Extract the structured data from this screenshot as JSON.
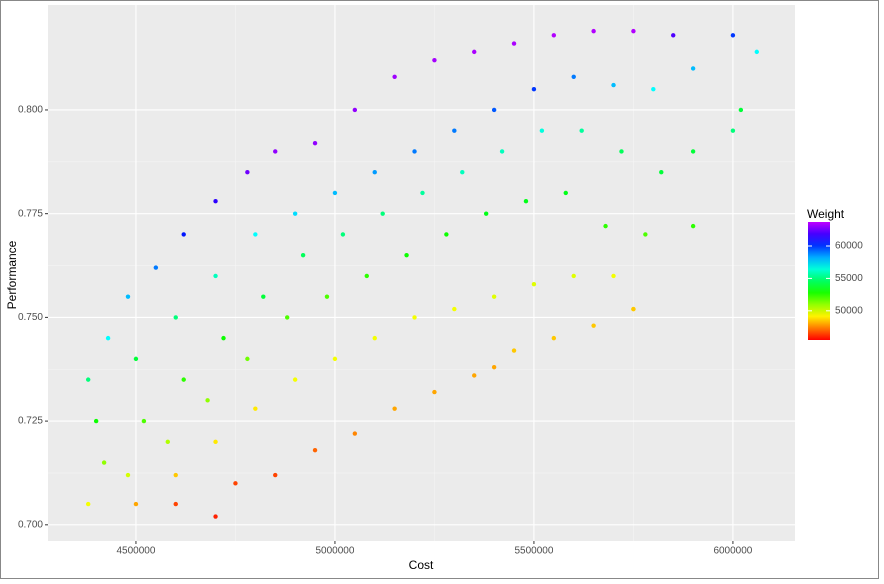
{
  "chart_data": {
    "type": "scatter",
    "x_label": "Cost",
    "y_label": "Performance",
    "color_label": "Weight",
    "xlim": [
      4279000,
      6156000
    ],
    "ylim": [
      0.6961,
      0.8253
    ],
    "xticks": [
      4500000,
      5000000,
      5500000,
      6000000
    ],
    "yticks": [
      {
        "value": 0.7,
        "label": "0.700"
      },
      {
        "value": 0.725,
        "label": "0.725"
      },
      {
        "value": 0.75,
        "label": "0.750"
      },
      {
        "value": 0.775,
        "label": "0.775"
      },
      {
        "value": 0.8,
        "label": "0.800"
      }
    ],
    "color_lim": [
      45500,
      63700
    ],
    "color_ticks": [
      50000,
      55000,
      60000
    ],
    "grid": true,
    "x": [
      4380000,
      4430000,
      4480000,
      4550000,
      4620000,
      4700000,
      4780000,
      4850000,
      4950000,
      5050000,
      5150000,
      5250000,
      5350000,
      5450000,
      5550000,
      5650000,
      5750000,
      5850000,
      6000000,
      6060000,
      4400000,
      4500000,
      4600000,
      4700000,
      4800000,
      4900000,
      5000000,
      5100000,
      5200000,
      5300000,
      5400000,
      5500000,
      5600000,
      5700000,
      5800000,
      5900000,
      6020000,
      4420000,
      4520000,
      4620000,
      4720000,
      4820000,
      4920000,
      5020000,
      5120000,
      5220000,
      5320000,
      5420000,
      5520000,
      5620000,
      5720000,
      5820000,
      5900000,
      6000000,
      4380000,
      4480000,
      4580000,
      4680000,
      4780000,
      4880000,
      4980000,
      5080000,
      5180000,
      5280000,
      5380000,
      5480000,
      5580000,
      5680000,
      5780000,
      5900000,
      4500000,
      4600000,
      4700000,
      4800000,
      4900000,
      5000000,
      5100000,
      5200000,
      5300000,
      5400000,
      5500000,
      5600000,
      5700000,
      5750000,
      4600000,
      4700000,
      4750000,
      4850000,
      4950000,
      5050000,
      5150000,
      5250000,
      5350000,
      5400000,
      5450000,
      5550000,
      5650000,
      5750000
    ],
    "values": [
      0.735,
      0.745,
      0.755,
      0.762,
      0.77,
      0.778,
      0.785,
      0.79,
      0.792,
      0.8,
      0.808,
      0.812,
      0.814,
      0.816,
      0.818,
      0.819,
      0.819,
      0.818,
      0.818,
      0.814,
      0.725,
      0.74,
      0.75,
      0.76,
      0.77,
      0.775,
      0.78,
      0.785,
      0.79,
      0.795,
      0.8,
      0.805,
      0.808,
      0.806,
      0.805,
      0.81,
      0.8,
      0.715,
      0.725,
      0.735,
      0.745,
      0.755,
      0.765,
      0.77,
      0.775,
      0.78,
      0.785,
      0.79,
      0.795,
      0.795,
      0.79,
      0.785,
      0.79,
      0.795,
      0.705,
      0.712,
      0.72,
      0.73,
      0.74,
      0.75,
      0.755,
      0.76,
      0.765,
      0.77,
      0.775,
      0.778,
      0.78,
      0.772,
      0.77,
      0.772,
      0.705,
      0.712,
      0.72,
      0.728,
      0.735,
      0.74,
      0.745,
      0.75,
      0.752,
      0.755,
      0.758,
      0.76,
      0.76,
      0.752,
      0.705,
      0.702,
      0.71,
      0.712,
      0.718,
      0.722,
      0.728,
      0.732,
      0.736,
      0.738,
      0.742,
      0.745,
      0.748,
      0.752
    ],
    "weights": [
      55000,
      57000,
      58000,
      59000,
      60500,
      61500,
      62500,
      63000,
      63000,
      63000,
      63200,
      63300,
      63400,
      63400,
      63500,
      63500,
      63500,
      62000,
      60000,
      57000,
      53000,
      54000,
      55000,
      56000,
      57000,
      57500,
      58000,
      58500,
      59000,
      59000,
      59500,
      60000,
      59000,
      58000,
      57000,
      58000,
      54000,
      51000,
      52000,
      52500,
      53000,
      54000,
      54500,
      55000,
      55000,
      55500,
      56000,
      56000,
      56500,
      55500,
      54500,
      54000,
      54000,
      55000,
      49500,
      50000,
      50500,
      51000,
      51500,
      52000,
      52000,
      52500,
      53000,
      53000,
      53500,
      53500,
      53500,
      52500,
      52000,
      52500,
      48000,
      48500,
      49000,
      49000,
      49500,
      49500,
      49500,
      49500,
      49500,
      49800,
      49800,
      49800,
      49500,
      49000,
      46500,
      46000,
      46500,
      46500,
      47000,
      47500,
      48000,
      48000,
      48000,
      48000,
      48500,
      48500,
      48500,
      48500
    ]
  }
}
